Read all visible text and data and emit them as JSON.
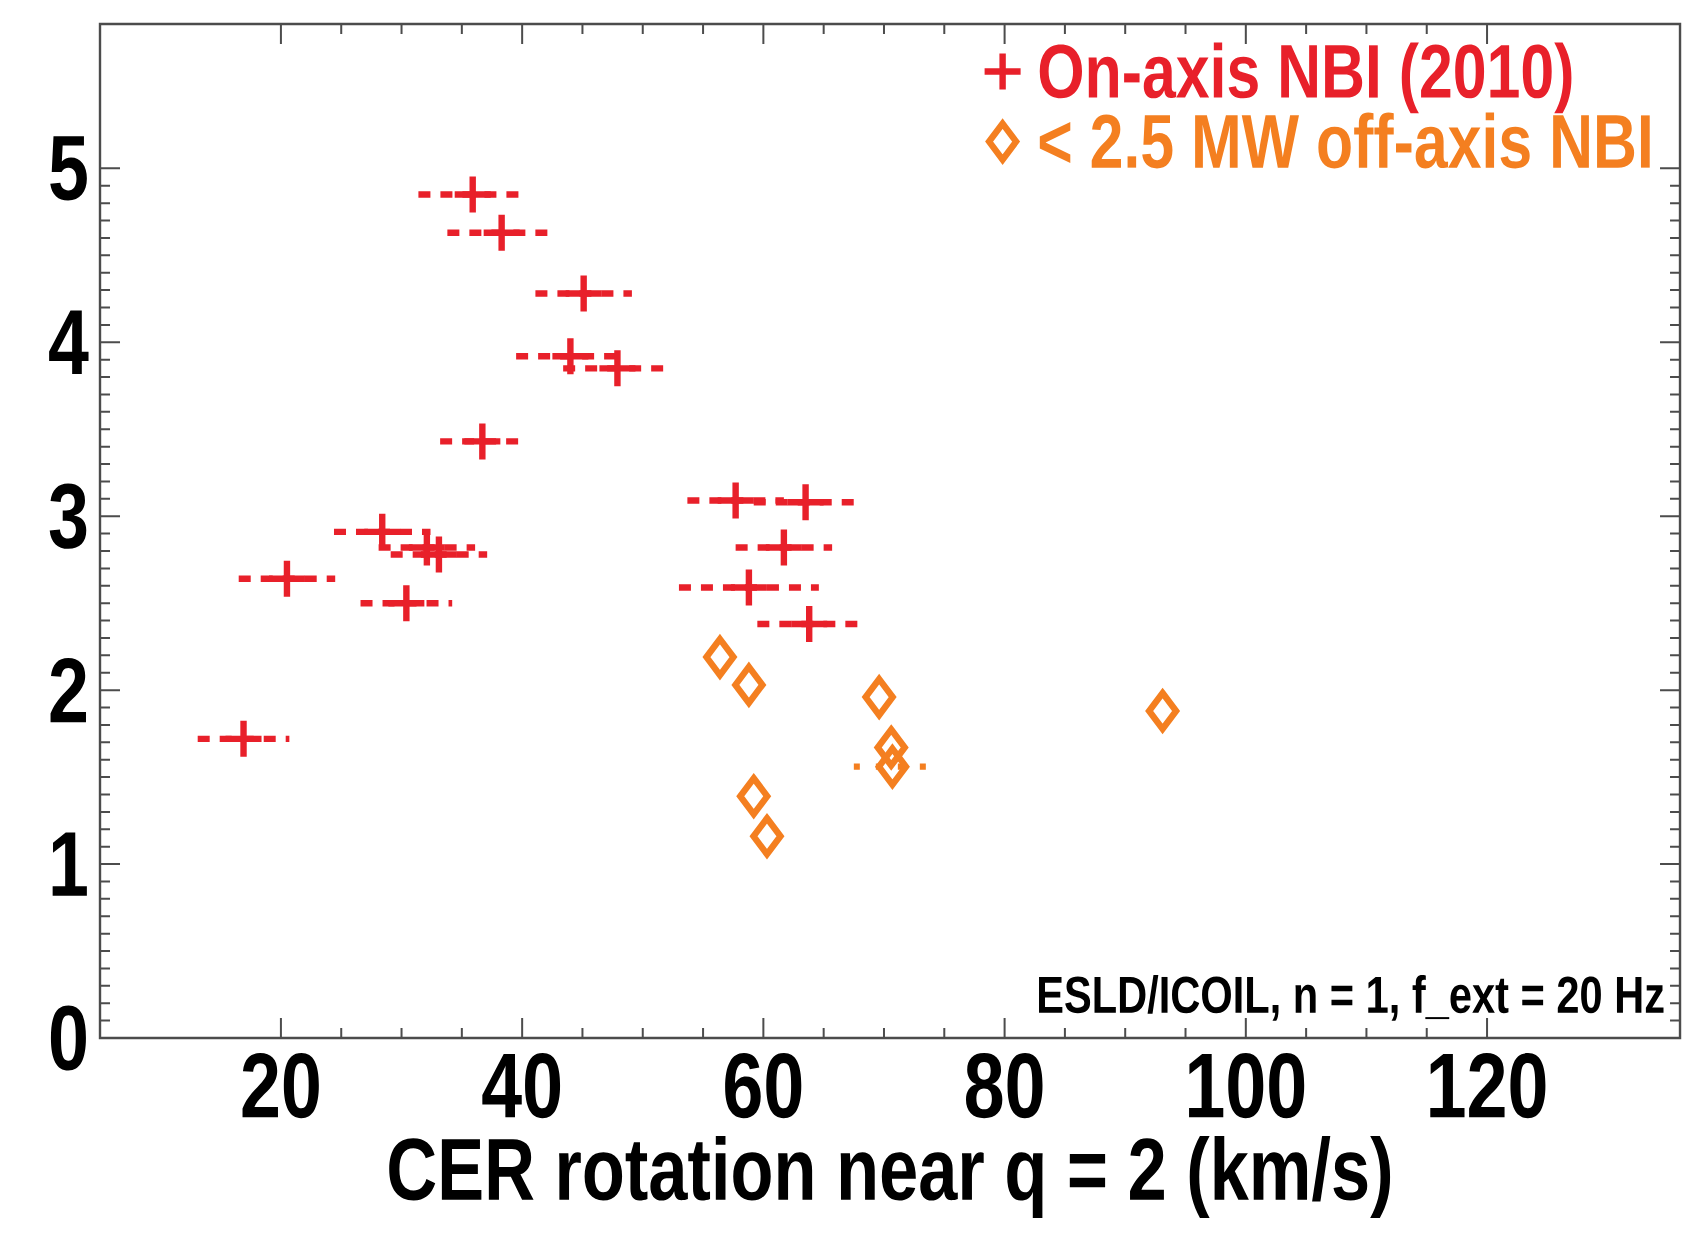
{
  "chart_data": {
    "type": "scatter",
    "xlabel": "CER rotation near q = 2 (km/s)",
    "xlim": [
      5,
      136
    ],
    "ylim": [
      0,
      5.83
    ],
    "xticks": [
      20,
      40,
      60,
      80,
      100,
      120
    ],
    "yticks": [
      0,
      1,
      2,
      3,
      4,
      5
    ],
    "legend": "top right",
    "grid": false,
    "annotations": [
      "ESLD/ICOIL, n = 1, f_ext = 20 Hz"
    ],
    "series": [
      {
        "name": "On-axis NBI (2010)",
        "color": "#e8202a",
        "marker": "cross",
        "line_style": "dashed",
        "x": [
          35.9,
          38.3,
          45.1,
          44.0,
          47.9,
          36.7,
          28.4,
          32.1,
          33.1,
          20.5,
          30.4,
          16.9,
          57.7,
          63.5,
          61.7,
          58.8,
          63.8
        ],
        "values": [
          4.85,
          4.63,
          4.28,
          3.92,
          3.85,
          3.43,
          2.91,
          2.82,
          2.78,
          2.64,
          2.5,
          1.72,
          3.09,
          3.08,
          2.82,
          2.59,
          2.38
        ],
        "xerrors": [
          4.5,
          4.5,
          4.0,
          4.5,
          4.5,
          3.5,
          4.0,
          4.0,
          4.0,
          4.0,
          3.8,
          3.8,
          4.0,
          4.3,
          4.0,
          5.8,
          4.3
        ]
      },
      {
        "name": "< 2.5 MW off-axis NBI",
        "color": "#f47f20",
        "marker": "diamond",
        "line_style": "dotted",
        "x": [
          56.4,
          58.8,
          69.6,
          70.6,
          70.7,
          93.1,
          59.2,
          60.3
        ],
        "values": [
          2.19,
          2.03,
          1.96,
          1.67,
          1.56,
          1.88,
          1.39,
          1.16
        ],
        "xerrors": [
          null,
          null,
          null,
          null,
          3.2,
          null,
          null,
          null
        ]
      }
    ]
  }
}
